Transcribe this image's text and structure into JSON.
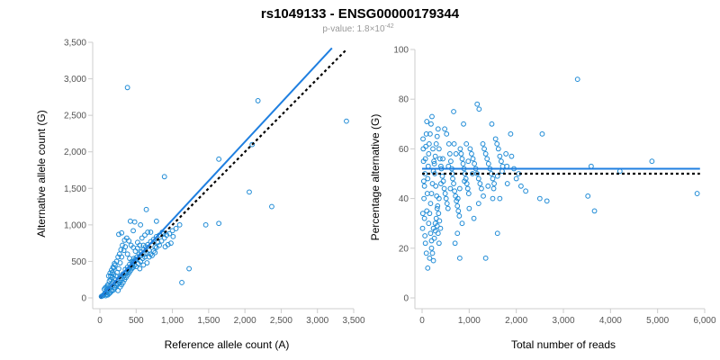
{
  "title": "rs1049133 - ENSG00000179344",
  "subtitle": "p-value: 1.8×10",
  "subtitle_exp": "-42",
  "colors": {
    "points": "#1f8bd6",
    "fit": "#1f7fe0",
    "reference": "#000000"
  },
  "chart_data": [
    {
      "type": "scatter",
      "xlabel": "Reference allele count (A)",
      "ylabel": "Alternative allele count (G)",
      "xlim": [
        0,
        3500
      ],
      "ylim": [
        0,
        3500
      ],
      "xticks": [
        "0",
        "500",
        "1,000",
        "1,500",
        "2,000",
        "2,500",
        "3,000",
        "3,500"
      ],
      "yticks": [
        "0",
        "500",
        "1,000",
        "1,500",
        "2,000",
        "2,500",
        "3,000",
        "3,500"
      ],
      "grid": false,
      "fit_line": {
        "x": [
          0,
          3200
        ],
        "y": [
          0,
          3420
        ]
      },
      "reference_line": {
        "x": [
          0,
          3400
        ],
        "y": [
          0,
          3400
        ]
      },
      "points": [
        [
          380,
          2880
        ],
        [
          2180,
          2700
        ],
        [
          1640,
          1900
        ],
        [
          3400,
          2420
        ],
        [
          2100,
          2100
        ],
        [
          2060,
          1450
        ],
        [
          2370,
          1250
        ],
        [
          1460,
          1000
        ],
        [
          1640,
          1020
        ],
        [
          890,
          1660
        ],
        [
          1130,
          210
        ],
        [
          1230,
          400
        ],
        [
          880,
          880
        ],
        [
          780,
          1050
        ],
        [
          700,
          900
        ],
        [
          640,
          1210
        ],
        [
          560,
          1000
        ],
        [
          600,
          720
        ],
        [
          480,
          1040
        ],
        [
          420,
          1050
        ],
        [
          460,
          920
        ],
        [
          520,
          760
        ],
        [
          300,
          890
        ],
        [
          260,
          870
        ],
        [
          980,
          750
        ],
        [
          1010,
          840
        ],
        [
          800,
          760
        ],
        [
          760,
          700
        ],
        [
          680,
          650
        ],
        [
          620,
          600
        ],
        [
          560,
          580
        ],
        [
          500,
          520
        ],
        [
          450,
          480
        ],
        [
          410,
          540
        ],
        [
          380,
          600
        ],
        [
          350,
          700
        ],
        [
          330,
          650
        ],
        [
          300,
          560
        ],
        [
          280,
          480
        ],
        [
          260,
          400
        ],
        [
          240,
          350
        ],
        [
          220,
          300
        ],
        [
          200,
          260
        ],
        [
          180,
          220
        ],
        [
          160,
          190
        ],
        [
          140,
          160
        ],
        [
          120,
          130
        ],
        [
          100,
          110
        ],
        [
          90,
          90
        ],
        [
          80,
          70
        ],
        [
          70,
          60
        ],
        [
          60,
          50
        ],
        [
          50,
          40
        ],
        [
          40,
          30
        ],
        [
          30,
          25
        ],
        [
          20,
          20
        ],
        [
          130,
          60
        ],
        [
          160,
          90
        ],
        [
          190,
          110
        ],
        [
          210,
          140
        ],
        [
          230,
          170
        ],
        [
          250,
          190
        ],
        [
          270,
          210
        ],
        [
          290,
          240
        ],
        [
          310,
          270
        ],
        [
          330,
          300
        ],
        [
          350,
          330
        ],
        [
          370,
          350
        ],
        [
          390,
          380
        ],
        [
          410,
          410
        ],
        [
          430,
          430
        ],
        [
          450,
          460
        ],
        [
          470,
          500
        ],
        [
          490,
          530
        ],
        [
          510,
          560
        ],
        [
          540,
          600
        ],
        [
          570,
          630
        ],
        [
          600,
          660
        ],
        [
          630,
          700
        ],
        [
          660,
          730
        ],
        [
          700,
          770
        ],
        [
          740,
          800
        ],
        [
          780,
          840
        ],
        [
          820,
          860
        ],
        [
          860,
          900
        ],
        [
          150,
          300
        ],
        [
          170,
          350
        ],
        [
          190,
          410
        ],
        [
          210,
          450
        ],
        [
          230,
          500
        ],
        [
          250,
          560
        ],
        [
          270,
          600
        ],
        [
          290,
          660
        ],
        [
          310,
          720
        ],
        [
          340,
          790
        ],
        [
          370,
          820
        ],
        [
          400,
          780
        ],
        [
          430,
          720
        ],
        [
          460,
          690
        ],
        [
          490,
          640
        ],
        [
          520,
          680
        ],
        [
          550,
          720
        ],
        [
          110,
          180
        ],
        [
          130,
          230
        ],
        [
          150,
          250
        ],
        [
          170,
          280
        ],
        [
          190,
          320
        ],
        [
          110,
          40
        ],
        [
          140,
          70
        ],
        [
          170,
          100
        ],
        [
          200,
          140
        ],
        [
          230,
          200
        ],
        [
          260,
          240
        ],
        [
          290,
          300
        ],
        [
          320,
          330
        ],
        [
          350,
          390
        ],
        [
          380,
          420
        ],
        [
          410,
          460
        ],
        [
          440,
          500
        ],
        [
          470,
          540
        ],
        [
          500,
          430
        ],
        [
          530,
          470
        ],
        [
          560,
          500
        ],
        [
          590,
          540
        ],
        [
          620,
          560
        ],
        [
          650,
          610
        ],
        [
          120,
          300
        ],
        [
          140,
          340
        ],
        [
          160,
          380
        ],
        [
          180,
          420
        ],
        [
          200,
          470
        ],
        [
          60,
          120
        ],
        [
          75,
          140
        ],
        [
          90,
          150
        ],
        [
          105,
          170
        ],
        [
          80,
          30
        ],
        [
          95,
          45
        ],
        [
          250,
          100
        ],
        [
          280,
          150
        ],
        [
          300,
          180
        ],
        [
          320,
          210
        ],
        [
          340,
          250
        ],
        [
          360,
          280
        ],
        [
          380,
          310
        ],
        [
          400,
          340
        ],
        [
          420,
          370
        ],
        [
          440,
          400
        ],
        [
          460,
          420
        ],
        [
          480,
          450
        ],
        [
          700,
          600
        ],
        [
          740,
          640
        ],
        [
          780,
          690
        ],
        [
          820,
          720
        ],
        [
          850,
          780
        ],
        [
          890,
          820
        ],
        [
          920,
          860
        ],
        [
          960,
          880
        ],
        [
          1000,
          920
        ],
        [
          1050,
          950
        ],
        [
          1100,
          1000
        ],
        [
          680,
          560
        ],
        [
          720,
          580
        ],
        [
          760,
          620
        ],
        [
          900,
          700
        ],
        [
          940,
          730
        ],
        [
          550,
          400
        ],
        [
          600,
          450
        ],
        [
          650,
          480
        ],
        [
          580,
          820
        ],
        [
          620,
          860
        ],
        [
          660,
          900
        ]
      ]
    },
    {
      "type": "scatter",
      "xlabel": "Total number of reads",
      "ylabel": "Percentage alternative (G)",
      "xlim": [
        0,
        6000
      ],
      "ylim": [
        0,
        100
      ],
      "xticks": [
        "0",
        "1,000",
        "2,000",
        "3,000",
        "4,000",
        "5,000",
        "6,000"
      ],
      "yticks": [
        "0",
        "20",
        "40",
        "60",
        "80",
        "100"
      ],
      "grid": false,
      "fit_line": {
        "x": [
          0,
          5900
        ],
        "y": [
          52,
          52
        ]
      },
      "reference_line": {
        "x": [
          0,
          5900
        ],
        "y": [
          50,
          50
        ]
      },
      "points": [
        [
          3300,
          88
        ],
        [
          1170,
          78
        ],
        [
          1210,
          76
        ],
        [
          670,
          75
        ],
        [
          880,
          70
        ],
        [
          1480,
          70
        ],
        [
          2550,
          66
        ],
        [
          4880,
          55
        ],
        [
          3590,
          53
        ],
        [
          3520,
          41
        ],
        [
          3660,
          35
        ],
        [
          4200,
          51
        ],
        [
          5840,
          42
        ],
        [
          2500,
          40
        ],
        [
          2650,
          39
        ],
        [
          1600,
          26
        ],
        [
          1650,
          40
        ],
        [
          1810,
          46
        ],
        [
          1780,
          58
        ],
        [
          1880,
          66
        ],
        [
          1520,
          44
        ],
        [
          1350,
          16
        ],
        [
          1070,
          50
        ],
        [
          980,
          55
        ],
        [
          940,
          62
        ],
        [
          900,
          47
        ],
        [
          850,
          30
        ],
        [
          800,
          16
        ],
        [
          760,
          40
        ],
        [
          720,
          58
        ],
        [
          680,
          62
        ],
        [
          640,
          50
        ],
        [
          600,
          44
        ],
        [
          560,
          53
        ],
        [
          520,
          66
        ],
        [
          480,
          68
        ],
        [
          440,
          56
        ],
        [
          400,
          46
        ],
        [
          360,
          40
        ],
        [
          320,
          36
        ],
        [
          280,
          30
        ],
        [
          240,
          28
        ],
        [
          200,
          23
        ],
        [
          160,
          16
        ],
        [
          120,
          12
        ],
        [
          90,
          18
        ],
        [
          70,
          22
        ],
        [
          60,
          25
        ],
        [
          50,
          32
        ],
        [
          40,
          40
        ],
        [
          35,
          47
        ],
        [
          30,
          55
        ],
        [
          25,
          60
        ],
        [
          20,
          64
        ],
        [
          15,
          34
        ],
        [
          10,
          28
        ],
        [
          100,
          35
        ],
        [
          110,
          42
        ],
        [
          120,
          48
        ],
        [
          130,
          53
        ],
        [
          140,
          58
        ],
        [
          150,
          62
        ],
        [
          170,
          66
        ],
        [
          190,
          70
        ],
        [
          210,
          73
        ],
        [
          230,
          60
        ],
        [
          250,
          55
        ],
        [
          270,
          50
        ],
        [
          290,
          45
        ],
        [
          310,
          41
        ],
        [
          330,
          37
        ],
        [
          350,
          34
        ],
        [
          370,
          31
        ],
        [
          390,
          28
        ],
        [
          410,
          52
        ],
        [
          430,
          49
        ],
        [
          450,
          47
        ],
        [
          470,
          44
        ],
        [
          490,
          42
        ],
        [
          510,
          40
        ],
        [
          530,
          38
        ],
        [
          550,
          36
        ],
        [
          570,
          62
        ],
        [
          590,
          58
        ],
        [
          610,
          55
        ],
        [
          630,
          52
        ],
        [
          650,
          48
        ],
        [
          670,
          46
        ],
        [
          690,
          43
        ],
        [
          710,
          41
        ],
        [
          730,
          39
        ],
        [
          750,
          37
        ],
        [
          770,
          35
        ],
        [
          790,
          33
        ],
        [
          810,
          60
        ],
        [
          830,
          58
        ],
        [
          850,
          56
        ],
        [
          870,
          54
        ],
        [
          890,
          52
        ],
        [
          910,
          50
        ],
        [
          930,
          48
        ],
        [
          950,
          46
        ],
        [
          970,
          44
        ],
        [
          990,
          42
        ],
        [
          1020,
          60
        ],
        [
          1050,
          58
        ],
        [
          1080,
          56
        ],
        [
          1110,
          54
        ],
        [
          1140,
          52
        ],
        [
          1170,
          50
        ],
        [
          1200,
          48
        ],
        [
          1230,
          46
        ],
        [
          1260,
          44
        ],
        [
          1290,
          62
        ],
        [
          1320,
          60
        ],
        [
          1350,
          58
        ],
        [
          1380,
          56
        ],
        [
          1410,
          54
        ],
        [
          1440,
          52
        ],
        [
          1470,
          50
        ],
        [
          1500,
          48
        ],
        [
          1530,
          46
        ],
        [
          1560,
          64
        ],
        [
          1590,
          62
        ],
        [
          1620,
          60
        ],
        [
          1650,
          57
        ],
        [
          1680,
          55
        ],
        [
          1710,
          53
        ],
        [
          180,
          38
        ],
        [
          200,
          42
        ],
        [
          220,
          46
        ],
        [
          240,
          51
        ],
        [
          260,
          54
        ],
        [
          280,
          57
        ],
        [
          300,
          62
        ],
        [
          320,
          65
        ],
        [
          340,
          68
        ],
        [
          360,
          60
        ],
        [
          380,
          56
        ],
        [
          400,
          53
        ],
        [
          140,
          30
        ],
        [
          160,
          34
        ],
        [
          180,
          26
        ],
        [
          200,
          20
        ],
        [
          220,
          18
        ],
        [
          240,
          15
        ],
        [
          260,
          24
        ],
        [
          280,
          27
        ],
        [
          300,
          32
        ],
        [
          320,
          29
        ],
        [
          340,
          26
        ],
        [
          360,
          22
        ],
        [
          50,
          45
        ],
        [
          60,
          50
        ],
        [
          70,
          56
        ],
        [
          80,
          61
        ],
        [
          90,
          66
        ],
        [
          100,
          71
        ],
        [
          1900,
          57
        ],
        [
          2000,
          48
        ],
        [
          2100,
          45
        ],
        [
          2200,
          43
        ],
        [
          1950,
          52
        ],
        [
          2050,
          50
        ],
        [
          700,
          22
        ],
        [
          750,
          26
        ],
        [
          800,
          44
        ],
        [
          1000,
          36
        ],
        [
          1100,
          32
        ],
        [
          1200,
          38
        ],
        [
          1300,
          41
        ],
        [
          1400,
          45
        ],
        [
          1500,
          40
        ],
        [
          1600,
          49
        ],
        [
          1700,
          51
        ],
        [
          1800,
          53
        ]
      ]
    }
  ]
}
